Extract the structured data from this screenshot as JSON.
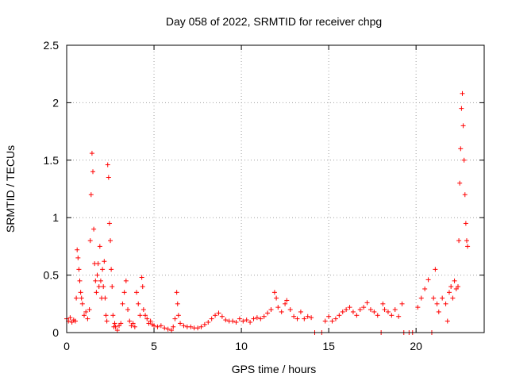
{
  "chart_data": {
    "type": "scatter",
    "title": "Day 058 of 2022, SRMTID for receiver chpg",
    "xlabel": "GPS time / hours",
    "ylabel": "SRMTID / TECUs",
    "xlim": [
      0,
      23.9
    ],
    "ylim": [
      0,
      2.5
    ],
    "grid": true,
    "marker": "+",
    "color": "#ff0000",
    "xticks": [
      {
        "value": 0,
        "label": "0"
      },
      {
        "value": 5,
        "label": "5"
      },
      {
        "value": 10,
        "label": "10"
      },
      {
        "value": 15,
        "label": "15"
      },
      {
        "value": 20,
        "label": "20"
      }
    ],
    "yticks": [
      {
        "value": 0,
        "label": "0"
      },
      {
        "value": 0.5,
        "label": "0.5"
      },
      {
        "value": 1,
        "label": "1"
      },
      {
        "value": 1.5,
        "label": "1.5"
      },
      {
        "value": 2,
        "label": "2"
      },
      {
        "value": 2.5,
        "label": "2.5"
      }
    ],
    "series": [
      {
        "name": "SRMTID",
        "points": [
          [
            0.0,
            0.12
          ],
          [
            0.1,
            0.1
          ],
          [
            0.2,
            0.13
          ],
          [
            0.3,
            0.09
          ],
          [
            0.4,
            0.11
          ],
          [
            0.5,
            0.1
          ],
          [
            0.55,
            0.3
          ],
          [
            0.6,
            0.72
          ],
          [
            0.65,
            0.65
          ],
          [
            0.7,
            0.55
          ],
          [
            0.75,
            0.45
          ],
          [
            0.8,
            0.35
          ],
          [
            0.85,
            0.3
          ],
          [
            0.9,
            0.25
          ],
          [
            1.0,
            0.15
          ],
          [
            1.1,
            0.18
          ],
          [
            1.2,
            0.12
          ],
          [
            1.3,
            0.2
          ],
          [
            1.35,
            0.8
          ],
          [
            1.4,
            1.2
          ],
          [
            1.45,
            1.56
          ],
          [
            1.5,
            1.4
          ],
          [
            1.55,
            0.9
          ],
          [
            1.6,
            0.6
          ],
          [
            1.65,
            0.45
          ],
          [
            1.7,
            0.35
          ],
          [
            1.75,
            0.5
          ],
          [
            1.8,
            0.6
          ],
          [
            1.85,
            0.4
          ],
          [
            1.9,
            0.75
          ],
          [
            1.95,
            0.45
          ],
          [
            2.0,
            0.3
          ],
          [
            2.05,
            0.55
          ],
          [
            2.1,
            0.4
          ],
          [
            2.15,
            0.62
          ],
          [
            2.2,
            0.3
          ],
          [
            2.25,
            0.15
          ],
          [
            2.3,
            0.1
          ],
          [
            2.35,
            1.46
          ],
          [
            2.4,
            1.35
          ],
          [
            2.45,
            0.95
          ],
          [
            2.5,
            0.8
          ],
          [
            2.55,
            0.55
          ],
          [
            2.6,
            0.4
          ],
          [
            2.65,
            0.15
          ],
          [
            2.7,
            0.05
          ],
          [
            2.75,
            0.08
          ],
          [
            2.8,
            0.05
          ],
          [
            2.9,
            0.02
          ],
          [
            3.0,
            0.06
          ],
          [
            3.1,
            0.08
          ],
          [
            3.2,
            0.25
          ],
          [
            3.3,
            0.35
          ],
          [
            3.4,
            0.45
          ],
          [
            3.5,
            0.2
          ],
          [
            3.6,
            0.1
          ],
          [
            3.7,
            0.06
          ],
          [
            3.8,
            0.08
          ],
          [
            3.9,
            0.05
          ],
          [
            4.0,
            0.35
          ],
          [
            4.1,
            0.25
          ],
          [
            4.2,
            0.15
          ],
          [
            4.3,
            0.48
          ],
          [
            4.35,
            0.4
          ],
          [
            4.4,
            0.2
          ],
          [
            4.5,
            0.15
          ],
          [
            4.6,
            0.12
          ],
          [
            4.7,
            0.08
          ],
          [
            4.8,
            0.1
          ],
          [
            4.9,
            0.07
          ],
          [
            5.0,
            0.06
          ],
          [
            5.2,
            0.05
          ],
          [
            5.4,
            0.06
          ],
          [
            5.6,
            0.04
          ],
          [
            5.8,
            0.03
          ],
          [
            6.0,
            0.02
          ],
          [
            6.1,
            0.05
          ],
          [
            6.2,
            0.12
          ],
          [
            6.3,
            0.35
          ],
          [
            6.35,
            0.25
          ],
          [
            6.4,
            0.15
          ],
          [
            6.5,
            0.08
          ],
          [
            6.7,
            0.06
          ],
          [
            6.9,
            0.05
          ],
          [
            7.1,
            0.05
          ],
          [
            7.3,
            0.04
          ],
          [
            7.5,
            0.04
          ],
          [
            7.7,
            0.05
          ],
          [
            7.9,
            0.07
          ],
          [
            8.1,
            0.09
          ],
          [
            8.3,
            0.12
          ],
          [
            8.5,
            0.15
          ],
          [
            8.7,
            0.17
          ],
          [
            8.9,
            0.14
          ],
          [
            9.1,
            0.11
          ],
          [
            9.3,
            0.1
          ],
          [
            9.5,
            0.1
          ],
          [
            9.7,
            0.09
          ],
          [
            9.9,
            0.12
          ],
          [
            10.1,
            0.1
          ],
          [
            10.3,
            0.11
          ],
          [
            10.5,
            0.09
          ],
          [
            10.7,
            0.12
          ],
          [
            10.9,
            0.13
          ],
          [
            11.1,
            0.12
          ],
          [
            11.3,
            0.14
          ],
          [
            11.5,
            0.17
          ],
          [
            11.7,
            0.2
          ],
          [
            11.9,
            0.35
          ],
          [
            12.0,
            0.3
          ],
          [
            12.1,
            0.22
          ],
          [
            12.3,
            0.18
          ],
          [
            12.5,
            0.25
          ],
          [
            12.6,
            0.28
          ],
          [
            12.8,
            0.2
          ],
          [
            13.0,
            0.14
          ],
          [
            13.2,
            0.12
          ],
          [
            13.4,
            0.18
          ],
          [
            13.6,
            0.12
          ],
          [
            13.8,
            0.14
          ],
          [
            14.0,
            0.13
          ],
          [
            14.2,
            0.0
          ],
          [
            14.6,
            0.0
          ],
          [
            14.8,
            0.1
          ],
          [
            15.0,
            0.14
          ],
          [
            15.2,
            0.1
          ],
          [
            15.4,
            0.12
          ],
          [
            15.6,
            0.15
          ],
          [
            15.8,
            0.18
          ],
          [
            16.0,
            0.2
          ],
          [
            16.2,
            0.22
          ],
          [
            16.4,
            0.18
          ],
          [
            16.6,
            0.15
          ],
          [
            16.8,
            0.2
          ],
          [
            17.0,
            0.22
          ],
          [
            17.2,
            0.26
          ],
          [
            17.4,
            0.2
          ],
          [
            17.6,
            0.18
          ],
          [
            17.8,
            0.15
          ],
          [
            18.0,
            0.0
          ],
          [
            18.1,
            0.25
          ],
          [
            18.2,
            0.2
          ],
          [
            18.4,
            0.18
          ],
          [
            18.6,
            0.15
          ],
          [
            18.8,
            0.2
          ],
          [
            19.0,
            0.14
          ],
          [
            19.2,
            0.25
          ],
          [
            19.3,
            0.0
          ],
          [
            19.6,
            0.0
          ],
          [
            19.8,
            0.0
          ],
          [
            20.1,
            0.22
          ],
          [
            20.3,
            0.3
          ],
          [
            20.5,
            0.38
          ],
          [
            20.7,
            0.46
          ],
          [
            20.9,
            0.0
          ],
          [
            21.0,
            0.3
          ],
          [
            21.1,
            0.55
          ],
          [
            21.2,
            0.25
          ],
          [
            21.3,
            0.18
          ],
          [
            21.5,
            0.3
          ],
          [
            21.7,
            0.25
          ],
          [
            21.8,
            0.1
          ],
          [
            21.9,
            0.35
          ],
          [
            22.0,
            0.4
          ],
          [
            22.1,
            0.3
          ],
          [
            22.2,
            0.45
          ],
          [
            22.3,
            0.38
          ],
          [
            22.4,
            0.4
          ],
          [
            22.45,
            0.8
          ],
          [
            22.5,
            1.3
          ],
          [
            22.55,
            1.6
          ],
          [
            22.6,
            1.95
          ],
          [
            22.65,
            2.08
          ],
          [
            22.7,
            1.8
          ],
          [
            22.75,
            1.5
          ],
          [
            22.8,
            1.2
          ],
          [
            22.85,
            0.95
          ],
          [
            22.9,
            0.8
          ],
          [
            22.95,
            0.75
          ]
        ]
      }
    ]
  }
}
